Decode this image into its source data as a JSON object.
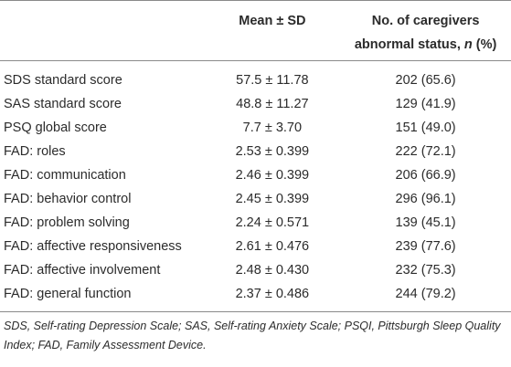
{
  "table": {
    "headers": {
      "label": "",
      "mean": "Mean ± SD",
      "n_line1": "No. of caregivers",
      "n_line2_prefix": "abnormal status, ",
      "n_line2_italic": "n",
      "n_line2_suffix": " (%)"
    },
    "rows": [
      {
        "label": "SDS standard score",
        "mean": "57.5 ± 11.78",
        "n": "202 (65.6)"
      },
      {
        "label": "SAS standard score",
        "mean": "48.8 ± 11.27",
        "n": "129 (41.9)"
      },
      {
        "label": "PSQ global score",
        "mean": "7.7 ± 3.70",
        "n": "151 (49.0)"
      },
      {
        "label": "FAD: roles",
        "mean": "2.53 ± 0.399",
        "n": "222 (72.1)"
      },
      {
        "label": "FAD: communication",
        "mean": "2.46 ± 0.399",
        "n": "206 (66.9)"
      },
      {
        "label": "FAD: behavior control",
        "mean": "2.45 ± 0.399",
        "n": "296 (96.1)"
      },
      {
        "label": "FAD: problem solving",
        "mean": "2.24 ± 0.571",
        "n": "139 (45.1)"
      },
      {
        "label": "FAD: affective responsiveness",
        "mean": "2.61 ± 0.476",
        "n": "239 (77.6)"
      },
      {
        "label": "FAD: affective involvement",
        "mean": "2.48 ± 0.430",
        "n": "232 (75.3)"
      },
      {
        "label": "FAD: general function",
        "mean": "2.37 ± 0.486",
        "n": "244 (79.2)"
      }
    ]
  },
  "footnote": "SDS, Self-rating Depression Scale; SAS, Self-rating Anxiety Scale; PSQI, Pittsburgh Sleep Quality Index; FAD, Family Assessment Device."
}
